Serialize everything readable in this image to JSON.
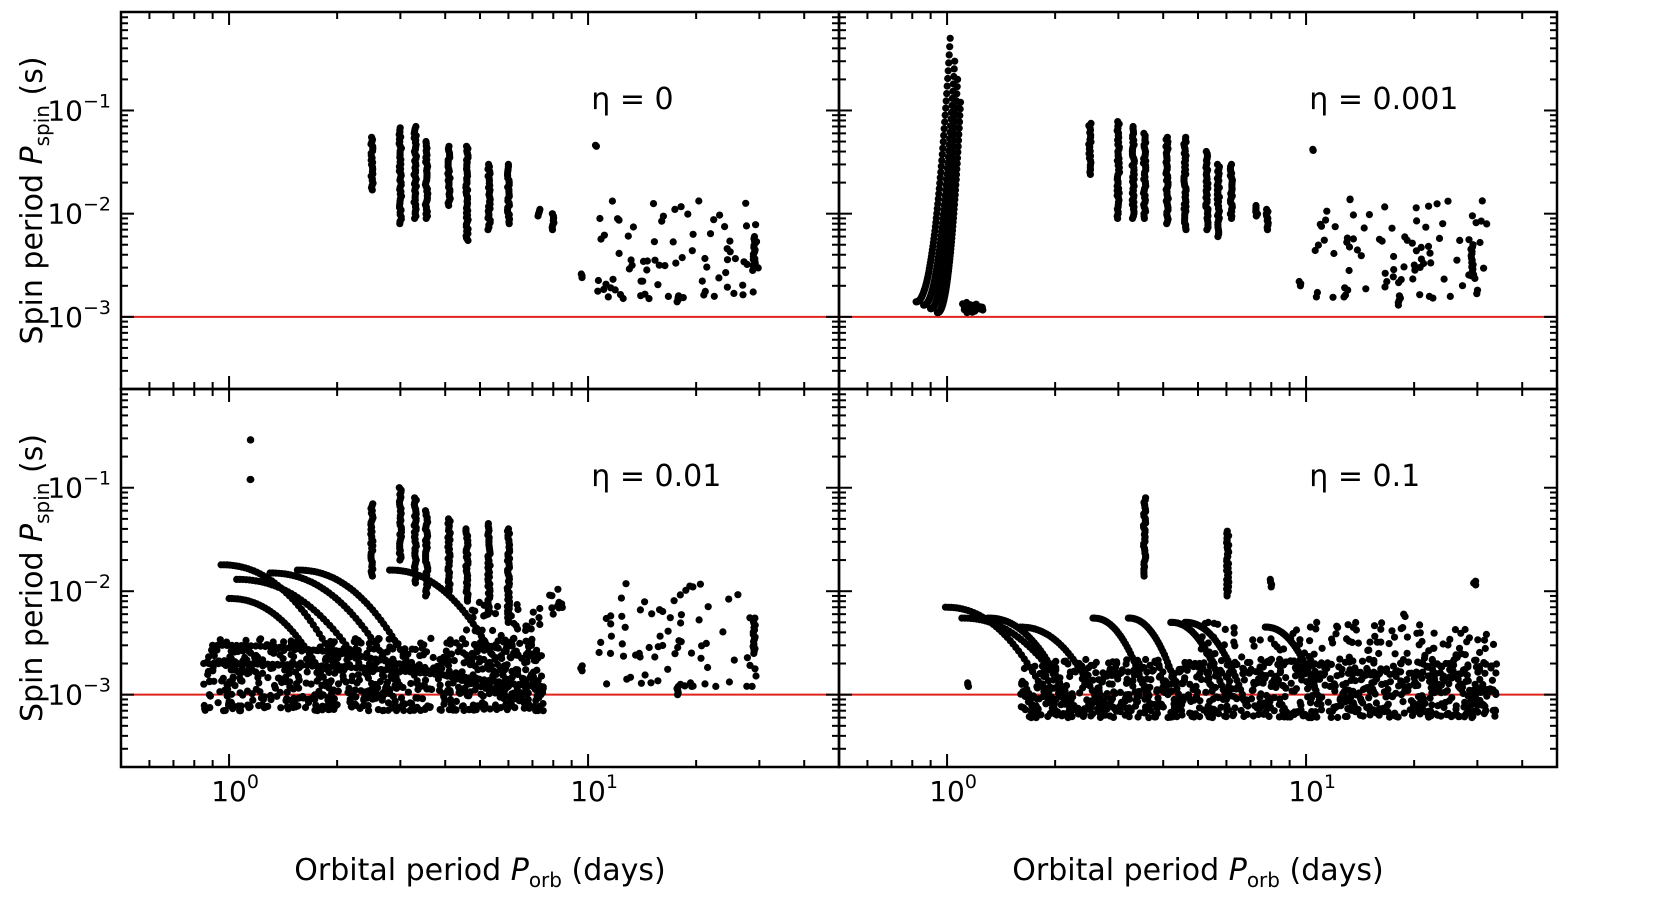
{
  "chart_data": {
    "type": "scatter",
    "title": "",
    "xlabel": "Orbital period",
    "xlabel_symbol": "P",
    "xlabel_sub": "orb",
    "xlabel_unit": "(days)",
    "ylabel": "Spin period",
    "ylabel_symbol": "P",
    "ylabel_sub": "spin",
    "ylabel_unit": "(s)",
    "x_scale": "log",
    "y_scale": "log",
    "xlim": [
      0.5,
      50
    ],
    "ylim": [
      0.0002,
      0.9
    ],
    "x_ticks": [
      {
        "base": "10",
        "exp": "0",
        "value": 1
      },
      {
        "base": "10",
        "exp": "1",
        "value": 10
      }
    ],
    "y_ticks": [
      {
        "base": "10",
        "exp": "−1",
        "value": 0.1
      },
      {
        "base": "10",
        "exp": "−2",
        "value": 0.01
      },
      {
        "base": "10",
        "exp": "−3",
        "value": 0.001
      }
    ],
    "reference_line": {
      "y": 0.001,
      "color": "#e0231c"
    },
    "marker_color": "#000000",
    "panels": [
      {
        "label": "η = 0",
        "columns": [
          {
            "x": 2.5,
            "ymin": 0.017,
            "ymax": 0.055
          },
          {
            "x": 3.0,
            "ymin": 0.008,
            "ymax": 0.068
          },
          {
            "x": 3.3,
            "ymin": 0.009,
            "ymax": 0.07
          },
          {
            "x": 3.55,
            "ymin": 0.009,
            "ymax": 0.05
          },
          {
            "x": 4.1,
            "ymin": 0.012,
            "ymax": 0.045
          },
          {
            "x": 4.6,
            "ymin": 0.0055,
            "ymax": 0.045
          },
          {
            "x": 5.3,
            "ymin": 0.007,
            "ymax": 0.03
          },
          {
            "x": 6.0,
            "ymin": 0.008,
            "ymax": 0.03
          },
          {
            "x": 7.3,
            "ymin": 0.0095,
            "ymax": 0.011
          },
          {
            "x": 8.0,
            "ymin": 0.007,
            "ymax": 0.01
          },
          {
            "x": 10.5,
            "ymin": 0.045,
            "ymax": 0.046
          },
          {
            "x": 9.6,
            "ymin": 0.0024,
            "ymax": 0.0026
          },
          {
            "x": 17.8,
            "ymin": 0.0014,
            "ymax": 0.0016
          },
          {
            "x": 29.0,
            "ymin": 0.003,
            "ymax": 0.006
          }
        ],
        "scatter_regions": [
          {
            "xmin": 10.5,
            "xmax": 30,
            "ymin": 0.0015,
            "ymax": 0.014,
            "n": 80
          }
        ],
        "tracks": []
      },
      {
        "label": "η = 0.001",
        "columns": [
          {
            "x": 2.5,
            "ymin": 0.024,
            "ymax": 0.075
          },
          {
            "x": 3.0,
            "ymin": 0.009,
            "ymax": 0.078
          },
          {
            "x": 3.3,
            "ymin": 0.009,
            "ymax": 0.07
          },
          {
            "x": 3.55,
            "ymin": 0.009,
            "ymax": 0.06
          },
          {
            "x": 4.1,
            "ymin": 0.008,
            "ymax": 0.055
          },
          {
            "x": 4.6,
            "ymin": 0.007,
            "ymax": 0.055
          },
          {
            "x": 5.3,
            "ymin": 0.007,
            "ymax": 0.04
          },
          {
            "x": 5.7,
            "ymin": 0.006,
            "ymax": 0.03
          },
          {
            "x": 6.2,
            "ymin": 0.009,
            "ymax": 0.03
          },
          {
            "x": 7.3,
            "ymin": 0.0095,
            "ymax": 0.012
          },
          {
            "x": 7.8,
            "ymin": 0.007,
            "ymax": 0.011
          },
          {
            "x": 10.5,
            "ymin": 0.041,
            "ymax": 0.042
          },
          {
            "x": 9.6,
            "ymin": 0.002,
            "ymax": 0.0022
          },
          {
            "x": 18.2,
            "ymin": 0.0013,
            "ymax": 0.0016
          },
          {
            "x": 29.0,
            "ymin": 0.0025,
            "ymax": 0.005
          }
        ],
        "scatter_regions": [
          {
            "xmin": 10.5,
            "xmax": 32,
            "ymin": 0.0015,
            "ymax": 0.015,
            "n": 85
          },
          {
            "xmin": 1.1,
            "xmax": 1.27,
            "ymin": 0.0011,
            "ymax": 0.0014,
            "n": 20
          }
        ],
        "tracks": [
          {
            "x0": 0.82,
            "y0": 0.0014,
            "x1": 1.02,
            "y1": 0.5,
            "n": 70
          },
          {
            "x0": 0.86,
            "y0": 0.0013,
            "x1": 1.05,
            "y1": 0.3,
            "n": 70
          },
          {
            "x0": 0.9,
            "y0": 0.0012,
            "x1": 1.07,
            "y1": 0.2,
            "n": 70
          },
          {
            "x0": 0.94,
            "y0": 0.0011,
            "x1": 1.09,
            "y1": 0.12,
            "n": 70
          }
        ]
      },
      {
        "label": "η = 0.01",
        "columns": [
          {
            "x": 2.5,
            "ymin": 0.014,
            "ymax": 0.07
          },
          {
            "x": 3.0,
            "ymin": 0.02,
            "ymax": 0.1
          },
          {
            "x": 3.3,
            "ymin": 0.012,
            "ymax": 0.08
          },
          {
            "x": 3.55,
            "ymin": 0.009,
            "ymax": 0.06
          },
          {
            "x": 4.1,
            "ymin": 0.01,
            "ymax": 0.05
          },
          {
            "x": 4.6,
            "ymin": 0.008,
            "ymax": 0.04
          },
          {
            "x": 5.3,
            "ymin": 0.006,
            "ymax": 0.045
          },
          {
            "x": 6.0,
            "ymin": 0.005,
            "ymax": 0.04
          },
          {
            "x": 1.15,
            "ymin": 0.12,
            "ymax": 0.12
          },
          {
            "x": 1.15,
            "ymin": 0.29,
            "ymax": 0.29
          },
          {
            "x": 9.6,
            "ymin": 0.0017,
            "ymax": 0.0019
          },
          {
            "x": 17.8,
            "ymin": 0.001,
            "ymax": 0.0012
          },
          {
            "x": 29.0,
            "ymin": 0.0025,
            "ymax": 0.0055
          }
        ],
        "scatter_regions": [
          {
            "xmin": 0.85,
            "xmax": 7.5,
            "ymin": 0.0007,
            "ymax": 0.0035,
            "n": 650
          },
          {
            "xmin": 4.5,
            "xmax": 7.5,
            "ymin": 0.001,
            "ymax": 0.008,
            "n": 90
          },
          {
            "xmin": 10.5,
            "xmax": 30,
            "ymin": 0.0012,
            "ymax": 0.012,
            "n": 75
          },
          {
            "xmin": 7.5,
            "xmax": 8.5,
            "ymin": 0.006,
            "ymax": 0.011,
            "n": 10
          }
        ],
        "tracks": [
          {
            "x0": 0.95,
            "y0": 0.018,
            "x1": 2.2,
            "y1": 0.001,
            "n": 45
          },
          {
            "x0": 1.05,
            "y0": 0.013,
            "x1": 2.6,
            "y1": 0.001,
            "n": 45
          },
          {
            "x0": 1.3,
            "y0": 0.015,
            "x1": 3.0,
            "y1": 0.0012,
            "n": 45
          },
          {
            "x0": 1.55,
            "y0": 0.016,
            "x1": 3.4,
            "y1": 0.0012,
            "n": 45
          },
          {
            "x0": 2.8,
            "y0": 0.016,
            "x1": 6.0,
            "y1": 0.0012,
            "n": 45
          },
          {
            "x0": 1.0,
            "y0": 0.0085,
            "x1": 2.0,
            "y1": 0.0008,
            "n": 40
          },
          {
            "x0": 0.9,
            "y0": 0.003,
            "x1": 7.5,
            "y1": 0.0007,
            "n": 70
          },
          {
            "x0": 0.85,
            "y0": 0.002,
            "x1": 7.5,
            "y1": 0.00115,
            "n": 70
          }
        ]
      },
      {
        "label": "η = 0.1",
        "columns": [
          {
            "x": 3.55,
            "ymin": 0.014,
            "ymax": 0.08
          },
          {
            "x": 6.05,
            "ymin": 0.009,
            "ymax": 0.038
          },
          {
            "x": 8.0,
            "ymin": 0.011,
            "ymax": 0.013
          },
          {
            "x": 29.5,
            "ymin": 0.0115,
            "ymax": 0.0125
          },
          {
            "x": 1.15,
            "ymin": 0.0012,
            "ymax": 0.0013
          },
          {
            "x": 18.8,
            "ymin": 0.0057,
            "ymax": 0.006
          }
        ],
        "scatter_regions": [
          {
            "xmin": 1.6,
            "xmax": 34,
            "ymin": 0.0006,
            "ymax": 0.0022,
            "n": 900
          },
          {
            "xmin": 5.0,
            "xmax": 34,
            "ymin": 0.0015,
            "ymax": 0.005,
            "n": 180
          }
        ],
        "tracks": [
          {
            "x0": 0.99,
            "y0": 0.007,
            "x1": 2.0,
            "y1": 0.00065,
            "n": 40
          },
          {
            "x0": 1.1,
            "y0": 0.0055,
            "x1": 2.3,
            "y1": 0.0007,
            "n": 40
          },
          {
            "x0": 1.3,
            "y0": 0.0055,
            "x1": 2.2,
            "y1": 0.0008,
            "n": 40
          },
          {
            "x0": 1.6,
            "y0": 0.0045,
            "x1": 2.7,
            "y1": 0.0007,
            "n": 35
          },
          {
            "x0": 2.55,
            "y0": 0.0055,
            "x1": 3.7,
            "y1": 0.0007,
            "n": 35
          },
          {
            "x0": 3.2,
            "y0": 0.0055,
            "x1": 4.5,
            "y1": 0.0008,
            "n": 35
          },
          {
            "x0": 4.2,
            "y0": 0.005,
            "x1": 6.0,
            "y1": 0.0009,
            "n": 35
          },
          {
            "x0": 4.6,
            "y0": 0.005,
            "x1": 6.8,
            "y1": 0.0008,
            "n": 35
          },
          {
            "x0": 7.7,
            "y0": 0.0045,
            "x1": 11.0,
            "y1": 0.0008,
            "n": 35
          }
        ]
      }
    ]
  }
}
